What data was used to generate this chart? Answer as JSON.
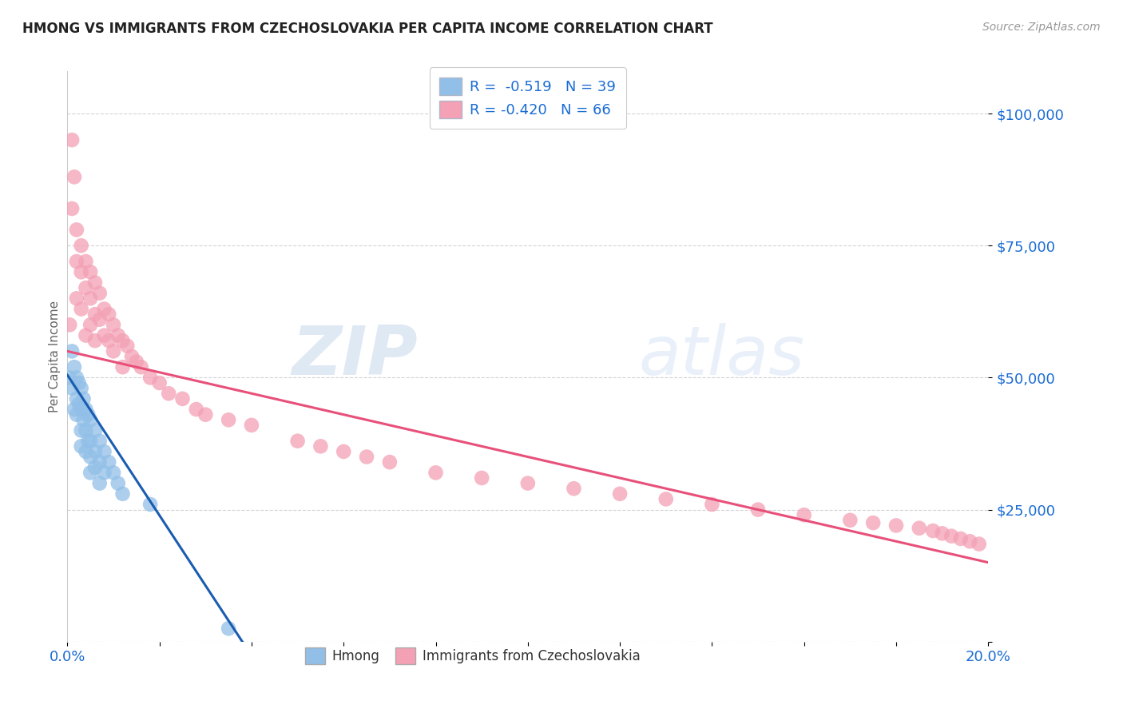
{
  "title": "HMONG VS IMMIGRANTS FROM CZECHOSLOVAKIA PER CAPITA INCOME CORRELATION CHART",
  "source": "Source: ZipAtlas.com",
  "ylabel": "Per Capita Income",
  "yticks": [
    0,
    25000,
    50000,
    75000,
    100000
  ],
  "ytick_labels": [
    "",
    "$25,000",
    "$50,000",
    "$75,000",
    "$100,000"
  ],
  "xlim": [
    0.0,
    0.2
  ],
  "ylim": [
    0,
    108000
  ],
  "color_hmong": "#92bfe8",
  "color_czech": "#f4a0b5",
  "color_hmong_line": "#1a5cb0",
  "color_czech_line": "#e8507a",
  "color_axis_text": "#1a6cd4",
  "color_grid": "#d0d0d0",
  "watermark_color": "#ccddf5",
  "legend_label_hmong": "Hmong",
  "legend_label_czech": "Immigrants from Czechoslovakia",
  "hmong_x": [
    0.0005,
    0.001,
    0.001,
    0.0015,
    0.0015,
    0.002,
    0.002,
    0.002,
    0.0025,
    0.0025,
    0.003,
    0.003,
    0.003,
    0.003,
    0.0035,
    0.0035,
    0.004,
    0.004,
    0.004,
    0.0045,
    0.0045,
    0.005,
    0.005,
    0.005,
    0.005,
    0.006,
    0.006,
    0.006,
    0.007,
    0.007,
    0.007,
    0.008,
    0.008,
    0.009,
    0.01,
    0.011,
    0.012,
    0.018,
    0.035
  ],
  "hmong_y": [
    50000,
    55000,
    48000,
    52000,
    44000,
    50000,
    46000,
    43000,
    49000,
    45000,
    48000,
    44000,
    40000,
    37000,
    46000,
    42000,
    44000,
    40000,
    36000,
    43000,
    38000,
    42000,
    38000,
    35000,
    32000,
    40000,
    36000,
    33000,
    38000,
    34000,
    30000,
    36000,
    32000,
    34000,
    32000,
    30000,
    28000,
    26000,
    2500
  ],
  "czech_x": [
    0.0005,
    0.001,
    0.001,
    0.0015,
    0.002,
    0.002,
    0.002,
    0.003,
    0.003,
    0.003,
    0.004,
    0.004,
    0.004,
    0.005,
    0.005,
    0.005,
    0.006,
    0.006,
    0.006,
    0.007,
    0.007,
    0.008,
    0.008,
    0.009,
    0.009,
    0.01,
    0.01,
    0.011,
    0.012,
    0.012,
    0.013,
    0.014,
    0.015,
    0.016,
    0.018,
    0.02,
    0.022,
    0.025,
    0.028,
    0.03,
    0.035,
    0.04,
    0.05,
    0.055,
    0.06,
    0.065,
    0.07,
    0.08,
    0.09,
    0.1,
    0.11,
    0.12,
    0.13,
    0.14,
    0.15,
    0.16,
    0.17,
    0.175,
    0.18,
    0.185,
    0.188,
    0.19,
    0.192,
    0.194,
    0.196,
    0.198
  ],
  "czech_y": [
    60000,
    95000,
    82000,
    88000,
    78000,
    72000,
    65000,
    75000,
    70000,
    63000,
    72000,
    67000,
    58000,
    70000,
    65000,
    60000,
    68000,
    62000,
    57000,
    66000,
    61000,
    63000,
    58000,
    62000,
    57000,
    60000,
    55000,
    58000,
    57000,
    52000,
    56000,
    54000,
    53000,
    52000,
    50000,
    49000,
    47000,
    46000,
    44000,
    43000,
    42000,
    41000,
    38000,
    37000,
    36000,
    35000,
    34000,
    32000,
    31000,
    30000,
    29000,
    28000,
    27000,
    26000,
    25000,
    24000,
    23000,
    22500,
    22000,
    21500,
    21000,
    20500,
    20000,
    19500,
    19000,
    18500
  ],
  "hmong_line_x": [
    0.0,
    0.038
  ],
  "hmong_line_y": [
    50500,
    0
  ],
  "czech_line_x": [
    0.0,
    0.2
  ],
  "czech_line_y": [
    55000,
    15000
  ]
}
